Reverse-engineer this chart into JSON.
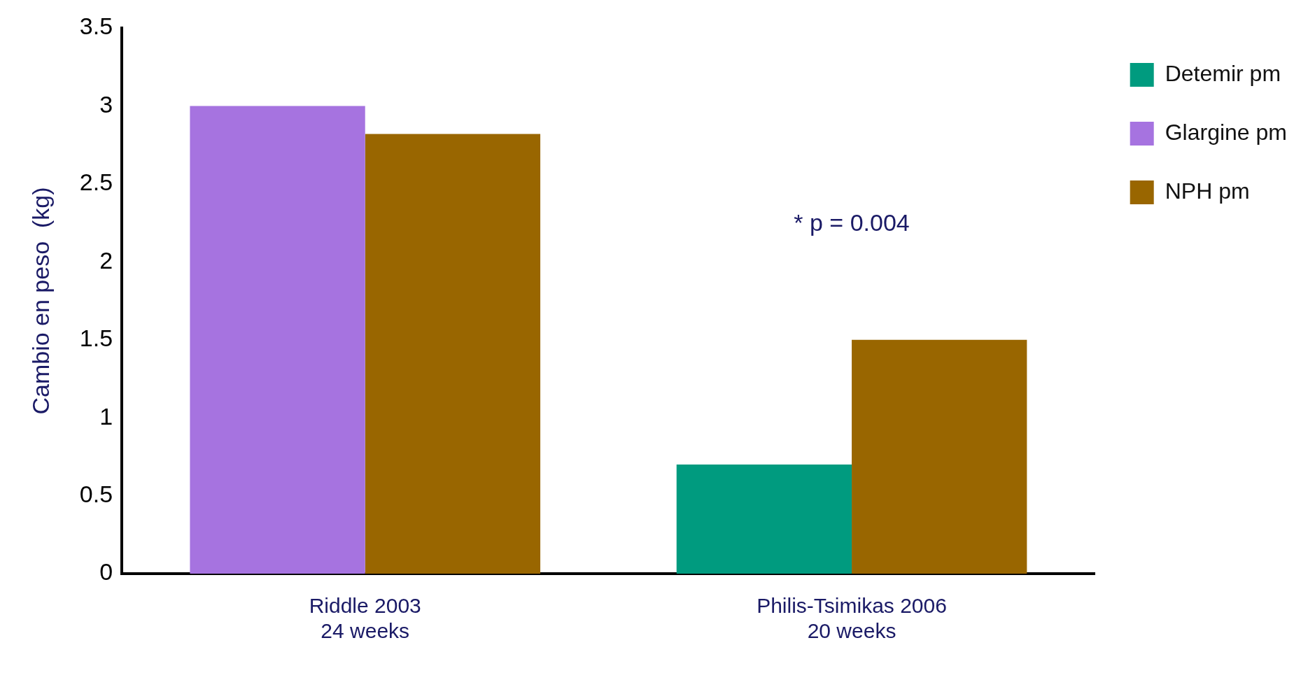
{
  "chart_data": {
    "type": "bar",
    "ylabel": "Cambio en peso  (kg)",
    "categories": [
      "Riddle 2003\n24 weeks",
      "Philis-Tsimikas 2006\n20 weeks"
    ],
    "series": [
      {
        "name": "Detemir pm",
        "color": "#009b7f",
        "values": [
          null,
          0.7
        ]
      },
      {
        "name": "Glargine pm",
        "color": "#a673e0",
        "values": [
          3.0,
          null
        ]
      },
      {
        "name": "NPH pm",
        "color": "#996600",
        "values": [
          2.82,
          1.5
        ]
      }
    ],
    "ylim": [
      0,
      3.5
    ],
    "yticks": [
      0,
      0.5,
      1,
      1.5,
      2,
      2.5,
      3,
      3.5
    ],
    "grid": false,
    "legend": "top right",
    "annotations": [
      "* p = 0.004"
    ]
  }
}
